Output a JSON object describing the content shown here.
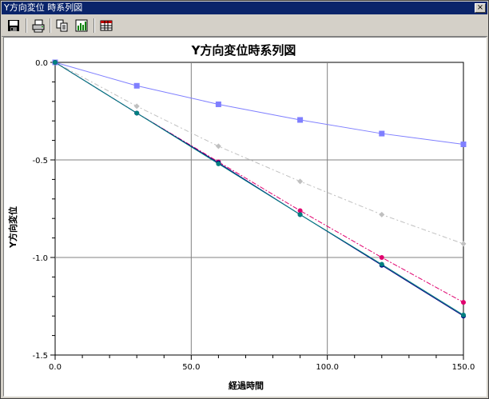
{
  "window": {
    "title": "Y方向変位 時系列図",
    "close_label": "×"
  },
  "toolbar": {
    "buttons": [
      {
        "icon": "save-icon"
      },
      {
        "icon": "print-icon"
      },
      {
        "icon": "copy-icon"
      },
      {
        "icon": "chart-export-icon"
      },
      {
        "icon": "data-table-icon"
      }
    ]
  },
  "chart_data": {
    "type": "line",
    "title": "Y方向変位時系列図",
    "xlabel": "経過時間",
    "ylabel": "Y方向変位",
    "xlim": [
      0,
      150
    ],
    "ylim": [
      -1.5,
      0
    ],
    "xticks": [
      "0.0",
      "50.0",
      "100.0",
      "150.0"
    ],
    "yticks": [
      "0.0",
      "-0.5",
      "-1.0",
      "-1.5"
    ],
    "grid": true,
    "x": [
      0,
      30,
      60,
      90,
      120,
      150
    ],
    "series": [
      {
        "color": "#7f7fff",
        "marker": "square",
        "dash": "",
        "values": [
          0,
          -0.12,
          -0.215,
          -0.295,
          -0.365,
          -0.42
        ]
      },
      {
        "color": "#c0c0c0",
        "marker": "diamond",
        "dash": "6,3,2,3",
        "values": [
          0,
          -0.225,
          -0.43,
          -0.61,
          -0.78,
          -0.93
        ]
      },
      {
        "color": "#e0006e",
        "marker": "circle",
        "dash": "6,2,2,2",
        "values": [
          0,
          -0.26,
          -0.51,
          -0.76,
          -1.0,
          -1.23
        ]
      },
      {
        "color": "#000080",
        "marker": "circle",
        "dash": "",
        "values": [
          0,
          -0.26,
          -0.515,
          -0.78,
          -1.04,
          -1.3
        ]
      },
      {
        "color": "#008080",
        "marker": "circle",
        "dash": "",
        "values": [
          0,
          -0.26,
          -0.52,
          -0.78,
          -1.035,
          -1.295
        ]
      }
    ]
  }
}
